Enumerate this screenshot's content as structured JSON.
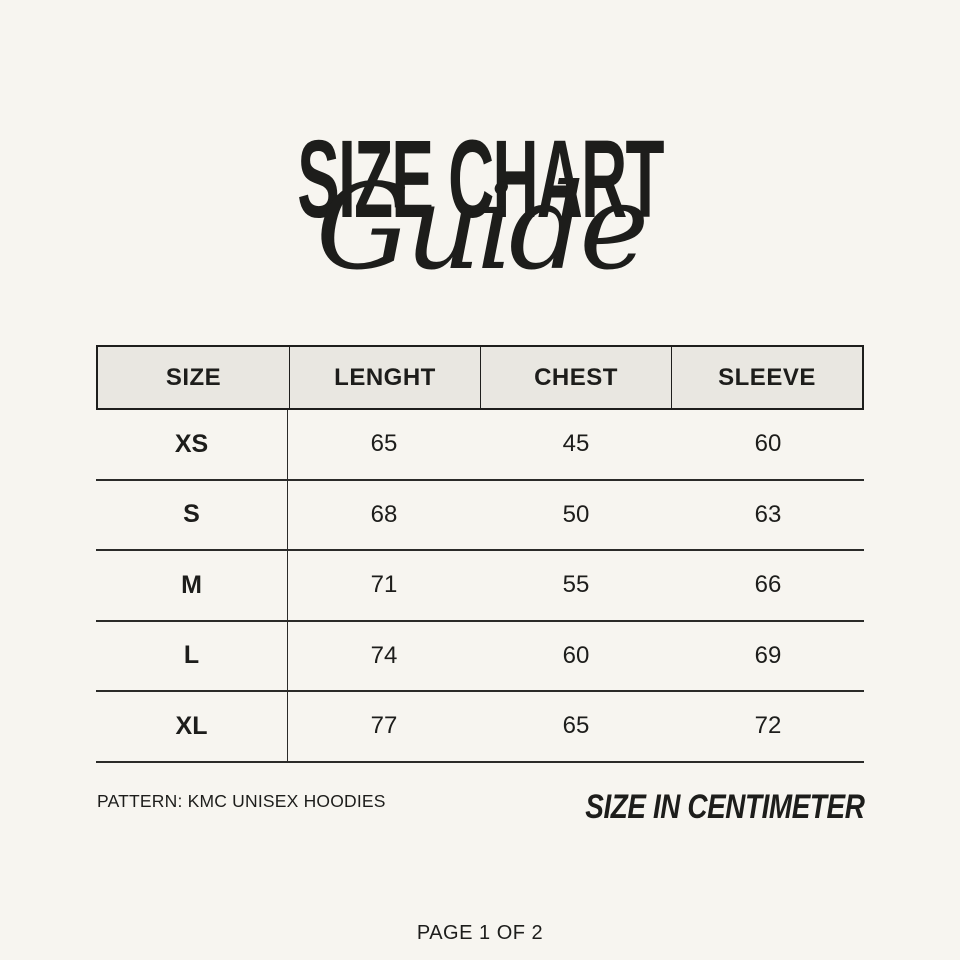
{
  "header": {
    "title": "SIZE CHART",
    "subtitle": "Guide"
  },
  "table": {
    "columns": [
      "SIZE",
      "LENGHT",
      "CHEST",
      "SLEEVE"
    ],
    "rows": [
      [
        "XS",
        "65",
        "45",
        "60"
      ],
      [
        "S",
        "68",
        "50",
        "63"
      ],
      [
        "M",
        "71",
        "55",
        "66"
      ],
      [
        "L",
        "74",
        "60",
        "69"
      ],
      [
        "XL",
        "77",
        "65",
        "72"
      ]
    ]
  },
  "footer": {
    "pattern_note": "PATTERN: KMC UNISEX HOODIES",
    "unit_note": "SIZE IN CENTIMETER",
    "page_indicator": "PAGE 1 OF 2"
  },
  "colors": {
    "background": "#f7f5f0",
    "header_fill": "#e9e7e1",
    "line": "#1e1e1c",
    "text": "#1d1d1b"
  }
}
